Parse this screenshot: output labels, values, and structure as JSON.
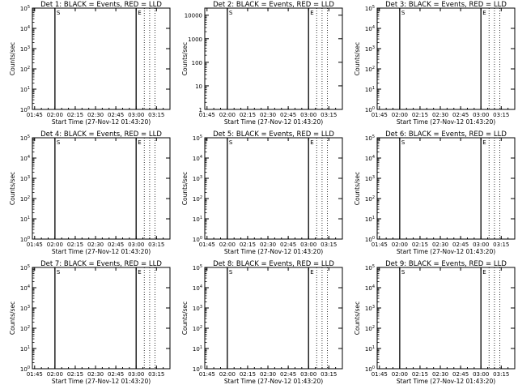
{
  "chart_data": [
    {
      "type": "line",
      "title": "Det 1: BLACK = Events, RED = LLD",
      "xlabel": "Start Time (27-Nov-12 01:43:20)",
      "ylabel": "Counts/sec",
      "xticks": [
        "01:45",
        "02:00",
        "02:15",
        "02:30",
        "02:45",
        "03:00",
        "03:15"
      ],
      "yticks": [
        "10^0",
        "10^1",
        "10^2",
        "10^3",
        "10^4",
        "10^5"
      ],
      "yscale": "log",
      "ylim": [
        1,
        100000
      ],
      "series": [
        {
          "name": "BLACK = Events",
          "color": "#000000"
        },
        {
          "name": "RED = LLD",
          "color": "#ff0000"
        }
      ]
    },
    {
      "type": "line",
      "title": "Det 2: BLACK = Events, RED = LLD",
      "xlabel": "Start Time (27-Nov-12 01:43:20)",
      "ylabel": "Counts/sec",
      "xticks": [
        "01:45",
        "02:00",
        "02:15",
        "02:30",
        "02:45",
        "03:00",
        "03:15"
      ],
      "yticks": [
        "1",
        "10",
        "100",
        "1000",
        "10000"
      ],
      "yscale": "log",
      "ylim": [
        1,
        20000
      ],
      "series": [
        {
          "name": "BLACK = Events",
          "color": "#000000"
        },
        {
          "name": "RED = LLD",
          "color": "#ff0000"
        }
      ]
    },
    {
      "type": "line",
      "title": "Det 3: BLACK = Events, RED = LLD",
      "xlabel": "Start Time (27-Nov-12 01:43:20)",
      "ylabel": "Counts/sec",
      "xticks": [
        "01:45",
        "02:00",
        "02:15",
        "02:30",
        "02:45",
        "03:00",
        "03:15"
      ],
      "yticks": [
        "10^0",
        "10^1",
        "10^2",
        "10^3",
        "10^4",
        "10^5"
      ],
      "yscale": "log",
      "ylim": [
        1,
        100000
      ],
      "series": [
        {
          "name": "BLACK = Events",
          "color": "#000000"
        },
        {
          "name": "RED = LLD",
          "color": "#ff0000"
        }
      ]
    },
    {
      "type": "line",
      "title": "Det 4: BLACK = Events, RED = LLD",
      "xlabel": "Start Time (27-Nov-12 01:43:20)",
      "ylabel": "Counts/sec",
      "xticks": [
        "01:45",
        "02:00",
        "02:15",
        "02:30",
        "02:45",
        "03:00",
        "03:15"
      ],
      "yticks": [
        "10^0",
        "10^1",
        "10^2",
        "10^3",
        "10^4",
        "10^5"
      ],
      "yscale": "log",
      "ylim": [
        1,
        100000
      ],
      "series": [
        {
          "name": "BLACK = Events",
          "color": "#000000"
        },
        {
          "name": "RED = LLD",
          "color": "#ff0000"
        }
      ]
    },
    {
      "type": "line",
      "title": "Det 5: BLACK = Events, RED = LLD",
      "xlabel": "Start Time (27-Nov-12 01:43:20)",
      "ylabel": "Counts/sec",
      "xticks": [
        "01:45",
        "02:00",
        "02:15",
        "02:30",
        "02:45",
        "03:00",
        "03:15"
      ],
      "yticks": [
        "10^0",
        "10^1",
        "10^2",
        "10^3",
        "10^4",
        "10^5"
      ],
      "yscale": "log",
      "ylim": [
        1,
        100000
      ],
      "series": [
        {
          "name": "BLACK = Events",
          "color": "#000000"
        },
        {
          "name": "RED = LLD",
          "color": "#ff0000"
        }
      ]
    },
    {
      "type": "line",
      "title": "Det 6: BLACK = Events, RED = LLD",
      "xlabel": "Start Time (27-Nov-12 01:43:20)",
      "ylabel": "Counts/sec",
      "xticks": [
        "01:45",
        "02:00",
        "02:15",
        "02:30",
        "02:45",
        "03:00",
        "03:15"
      ],
      "yticks": [
        "10^0",
        "10^1",
        "10^2",
        "10^3",
        "10^4",
        "10^5"
      ],
      "yscale": "log",
      "ylim": [
        1,
        100000
      ],
      "series": [
        {
          "name": "BLACK = Events",
          "color": "#000000"
        },
        {
          "name": "RED = LLD",
          "color": "#ff0000"
        }
      ]
    },
    {
      "type": "line",
      "title": "Det 7: BLACK = Events, RED = LLD",
      "xlabel": "Start Time (27-Nov-12 01:43:20)",
      "ylabel": "Counts/sec",
      "xticks": [
        "01:45",
        "02:00",
        "02:15",
        "02:30",
        "02:45",
        "03:00",
        "03:15"
      ],
      "yticks": [
        "10^0",
        "10^1",
        "10^2",
        "10^3",
        "10^4",
        "10^5"
      ],
      "yscale": "log",
      "ylim": [
        1,
        100000
      ],
      "series": [
        {
          "name": "BLACK = Events",
          "color": "#000000"
        },
        {
          "name": "RED = LLD",
          "color": "#ff0000"
        }
      ]
    },
    {
      "type": "line",
      "title": "Det 8: BLACK = Events, RED = LLD",
      "xlabel": "Start Time (27-Nov-12 01:43:20)",
      "ylabel": "Counts/sec",
      "xticks": [
        "01:45",
        "02:00",
        "02:15",
        "02:30",
        "02:45",
        "03:00",
        "03:15"
      ],
      "yticks": [
        "10^0",
        "10^1",
        "10^2",
        "10^3",
        "10^4",
        "10^5"
      ],
      "yscale": "log",
      "ylim": [
        1,
        100000
      ],
      "series": [
        {
          "name": "BLACK = Events",
          "color": "#000000"
        },
        {
          "name": "RED = LLD",
          "color": "#ff0000"
        }
      ]
    },
    {
      "type": "line",
      "title": "Det 9: BLACK = Events, RED = LLD",
      "xlabel": "Start Time (27-Nov-12 01:43:20)",
      "ylabel": "Counts/sec",
      "xticks": [
        "01:45",
        "02:00",
        "02:15",
        "02:30",
        "02:45",
        "03:00",
        "03:15"
      ],
      "yticks": [
        "10^0",
        "10^1",
        "10^2",
        "10^3",
        "10^4",
        "10^5"
      ],
      "yscale": "log",
      "ylim": [
        1,
        100000
      ],
      "series": [
        {
          "name": "BLACK = Events",
          "color": "#000000"
        },
        {
          "name": "RED = LLD",
          "color": "#ff0000"
        }
      ]
    }
  ],
  "time_range": [
    "01:43:20",
    "03:25"
  ],
  "markers": {
    "solid_line_times": [
      "02:00",
      "03:00"
    ],
    "dotted_line_times": [
      "03:06",
      "03:10",
      "03:14"
    ],
    "marker_labels": [
      "S",
      "E"
    ]
  }
}
